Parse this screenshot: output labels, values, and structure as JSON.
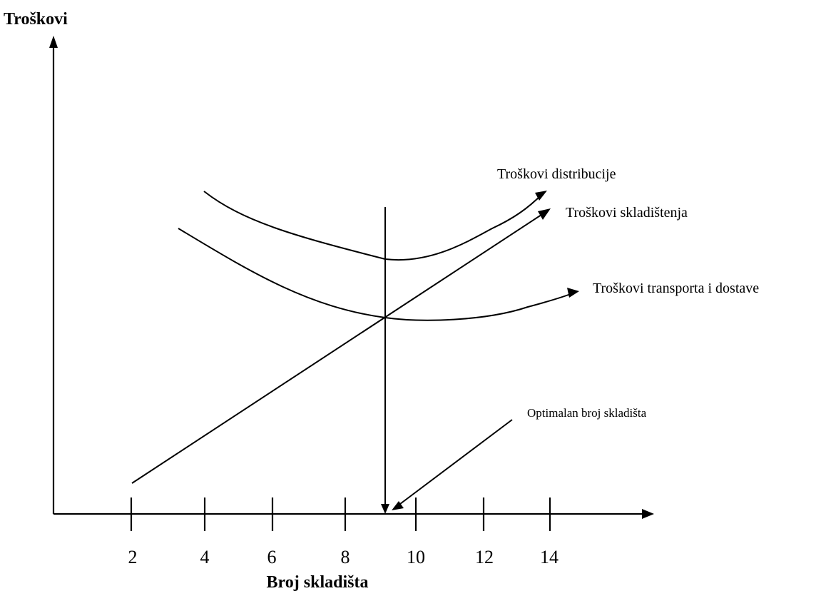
{
  "chart_data": {
    "type": "line",
    "title": "",
    "ylabel": "Troškovi",
    "xlabel": "Broj skladišta",
    "x_ticks": [
      "2",
      "4",
      "6",
      "8",
      "10",
      "12",
      "14"
    ],
    "xlim": [
      2,
      14
    ],
    "grid": false,
    "series": [
      {
        "name": "Troškovi distribucije",
        "x": [
          4.0,
          5.5,
          7.0,
          8.0,
          9.1,
          10.0,
          11.0,
          12.0,
          12.5,
          13.6
        ],
        "y": [
          6.2,
          5.45,
          4.85,
          4.55,
          4.45,
          4.5,
          4.9,
          5.35,
          5.7,
          6.35
        ]
      },
      {
        "name": "Troškovi skladištenja",
        "x": [
          2.0,
          9.1,
          13.8
        ],
        "y": [
          0.5,
          4.1,
          6.2
        ]
      },
      {
        "name": "Troškovi transporta i dostave",
        "x": [
          3.3,
          5.0,
          7.0,
          8.5,
          9.1,
          10.2,
          11.5,
          12.5,
          13.6,
          14.6
        ],
        "y": [
          5.2,
          4.65,
          4.05,
          3.75,
          3.9,
          3.95,
          4.0,
          4.15,
          4.3,
          4.45
        ]
      }
    ],
    "annotations": [
      {
        "label": "Optimalan broj skladišta",
        "x": 9.1
      }
    ]
  }
}
